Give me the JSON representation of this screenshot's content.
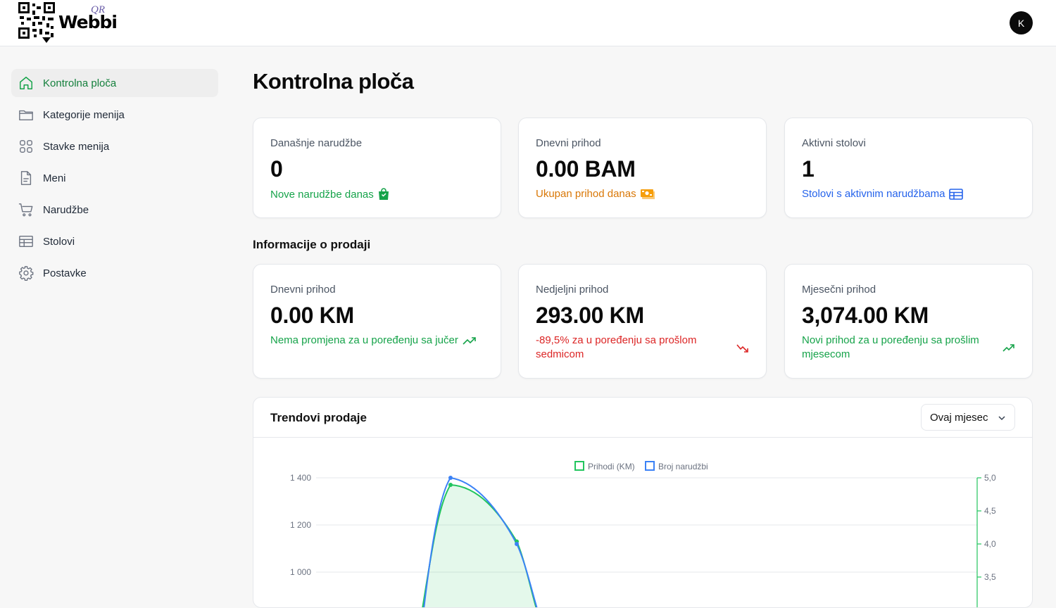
{
  "header": {
    "logo_word": "Webbi",
    "logo_qr": "QR",
    "avatar_initial": "K"
  },
  "sidebar": {
    "items": [
      {
        "label": "Kontrolna ploča",
        "icon": "home-icon",
        "active": true
      },
      {
        "label": "Kategorije menija",
        "icon": "folder-icon"
      },
      {
        "label": "Stavke menija",
        "icon": "grid-icon"
      },
      {
        "label": "Meni",
        "icon": "document-icon"
      },
      {
        "label": "Narudžbe",
        "icon": "cart-icon"
      },
      {
        "label": "Stolovi",
        "icon": "table-icon"
      },
      {
        "label": "Postavke",
        "icon": "gear-icon"
      }
    ]
  },
  "page": {
    "title": "Kontrolna ploča"
  },
  "stats": [
    {
      "label": "Današnje narudžbe",
      "value": "0",
      "sub": "Nove narudžbe danas",
      "icon": "shopping-bag-icon",
      "color": "#16a34a"
    },
    {
      "label": "Dnevni prihod",
      "value": "0.00 BAM",
      "sub": "Ukupan prihod danas",
      "icon": "banknote-icon",
      "color": "#d97706"
    },
    {
      "label": "Aktivni stolovi",
      "value": "1",
      "sub": "Stolovi s aktivnim narudžbama",
      "icon": "table-icon",
      "color": "#2563eb"
    }
  ],
  "sales": {
    "title": "Informacije o prodaji",
    "cards": [
      {
        "label": "Dnevni prihod",
        "value": "0.00 KM",
        "sub": "Nema promjena za u poređenju sa jučer",
        "trend": "up"
      },
      {
        "label": "Nedjeljni prihod",
        "value": "293.00 KM",
        "sub": "-89,5% za u poređenju sa prošlom sedmicom",
        "trend": "down"
      },
      {
        "label": "Mjesečni prihod",
        "value": "3,074.00 KM",
        "sub": "Novi prihod za u poređenju sa prošlim mjesecom",
        "trend": "up"
      }
    ]
  },
  "trends": {
    "title": "Trendovi prodaje",
    "range_selected": "Ovaj mjesec"
  },
  "chart_data": {
    "type": "area",
    "title": "Trendovi prodaje",
    "legend": [
      "Prihodi (KM)",
      "Broj narudžbi"
    ],
    "legend_position": "top-center",
    "colors": {
      "prihodi": "#22c55e",
      "narudzbi": "#3b82f6"
    },
    "y_left_ticks": [
      "1 400",
      "1 200",
      "1 000"
    ],
    "y_right_ticks": [
      "5,0",
      "4,5",
      "4,0",
      "3,5"
    ],
    "series": [
      {
        "name": "Prihodi (KM)",
        "axis": "left",
        "x": [
          1,
          2
        ],
        "values": [
          1370,
          1130
        ]
      },
      {
        "name": "Broj narudžbi",
        "axis": "right",
        "x": [
          1,
          2
        ],
        "values": [
          5.0,
          4.0
        ]
      }
    ],
    "grid": true
  }
}
